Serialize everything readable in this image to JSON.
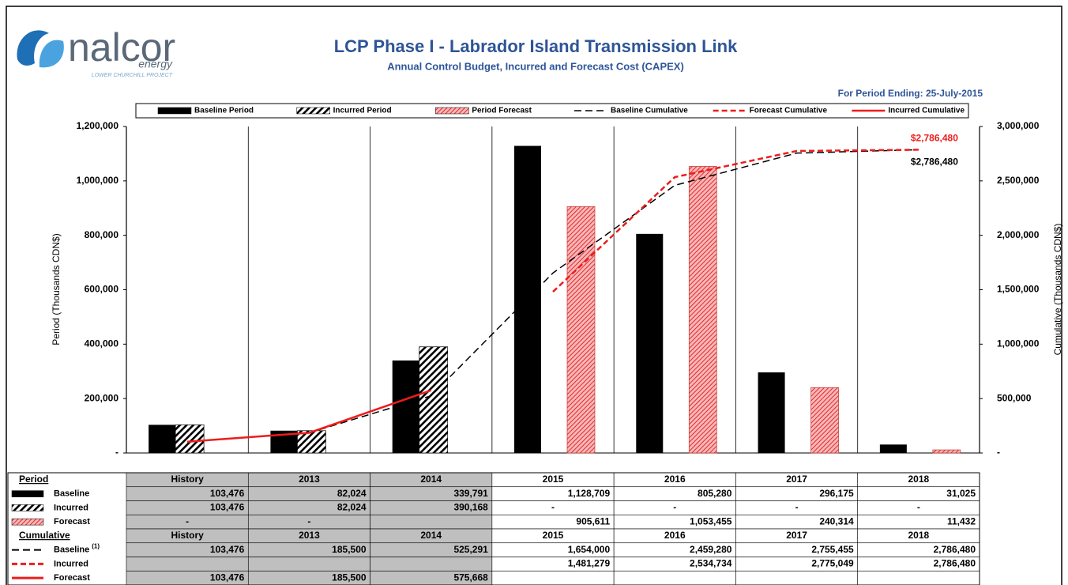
{
  "logo": {
    "name": "nalcor",
    "tagline": "energy",
    "project": "LOWER CHURCHILL PROJECT"
  },
  "chart_data": {
    "type": "bar",
    "title": "LCP Phase I - Labrador Island Transmission Link",
    "subtitle": "Annual Control Budget, Incurred and Forecast Cost (CAPEX)",
    "period_note": "For Period Ending: 25-July-2015",
    "ylabel": "Period (Thousands CDN$)",
    "y2label": "Cumulative (Thousands CDN$)",
    "categories": [
      "History",
      "2013",
      "2014",
      "2015",
      "2016",
      "2017",
      "2018"
    ],
    "ylim": [
      0,
      1200000
    ],
    "yticks": [
      {
        "value": 0,
        "label": "-"
      },
      {
        "value": 200000,
        "label": "200,000"
      },
      {
        "value": 400000,
        "label": "400,000"
      },
      {
        "value": 600000,
        "label": "600,000"
      },
      {
        "value": 800000,
        "label": "800,000"
      },
      {
        "value": 1000000,
        "label": "1,000,000"
      },
      {
        "value": 1200000,
        "label": "1,200,000"
      }
    ],
    "y2lim": [
      0,
      3000000
    ],
    "y2ticks": [
      {
        "value": 0,
        "label": "-"
      },
      {
        "value": 500000,
        "label": "500,000"
      },
      {
        "value": 1000000,
        "label": "1,000,000"
      },
      {
        "value": 1500000,
        "label": "1,500,000"
      },
      {
        "value": 2000000,
        "label": "2,000,000"
      },
      {
        "value": 2500000,
        "label": "2,500,000"
      },
      {
        "value": 3000000,
        "label": "3,000,000"
      }
    ],
    "legend": "top",
    "series": [
      {
        "name": "Baseline Period",
        "type": "bar",
        "color": "#000000",
        "pattern": "solid",
        "values": [
          103476,
          82024,
          339791,
          1128709,
          805280,
          296175,
          31025
        ],
        "value_labels": [
          "103,476",
          "82,024",
          "339,791",
          "1,128,709",
          "805,280",
          "296,175",
          "31,025"
        ]
      },
      {
        "name": "Incurred Period",
        "type": "bar",
        "color": "#000000",
        "pattern": "hatch",
        "values": [
          103476,
          82024,
          390168,
          null,
          null,
          null,
          null
        ],
        "value_labels": [
          "103,476",
          "82,024",
          "390,168",
          "-",
          "-",
          "-",
          "-"
        ]
      },
      {
        "name": "Period Forecast",
        "type": "bar",
        "color": "#e8262b",
        "pattern": "hatch",
        "values": [
          null,
          null,
          null,
          905611,
          1053455,
          240314,
          11432
        ],
        "value_labels": [
          "-",
          "-",
          null,
          "905,611",
          "1,053,455",
          "240,314",
          "11,432"
        ]
      },
      {
        "name": "Baseline Cumulative",
        "type": "line",
        "axis": "y2",
        "color": "#000000",
        "dash": "long",
        "values": [
          103476,
          185500,
          525291,
          1654000,
          2459280,
          2755455,
          2786480
        ],
        "value_labels": [
          "103,476",
          "185,500",
          "525,291",
          "1,654,000",
          "2,459,280",
          "2,755,455",
          "2,786,480"
        ]
      },
      {
        "name": "Forecast Cumulative",
        "type": "line",
        "axis": "y2",
        "color": "#ee1c1c",
        "dash": "short",
        "values": [
          null,
          null,
          null,
          1481279,
          2534734,
          2775049,
          2786480
        ],
        "value_labels": [
          null,
          null,
          null,
          "1,481,279",
          "2,534,734",
          "2,775,049",
          "2,786,480"
        ]
      },
      {
        "name": "Incurred Cumulative",
        "type": "line",
        "axis": "y2",
        "color": "#ee1c1c",
        "dash": "none",
        "values": [
          103476,
          185500,
          575668,
          null,
          null,
          null,
          null
        ],
        "value_labels": [
          "103,476",
          "185,500",
          "575,668",
          null,
          null,
          null,
          null
        ]
      }
    ],
    "annotations": [
      {
        "text": "$2,786,480",
        "series": "Forecast Cumulative",
        "color": "#ee1c1c"
      },
      {
        "text": "$2,786,480",
        "series": "Baseline Cumulative",
        "color": "#000000"
      }
    ],
    "table": {
      "period_header": "Period",
      "cumulative_header": "Cumulative",
      "period_rows": [
        "Baseline",
        "Incurred",
        "Forecast"
      ],
      "cumulative_rows": [
        "Baseline",
        "Incurred",
        "Forecast"
      ],
      "footnote": "(1)"
    }
  }
}
